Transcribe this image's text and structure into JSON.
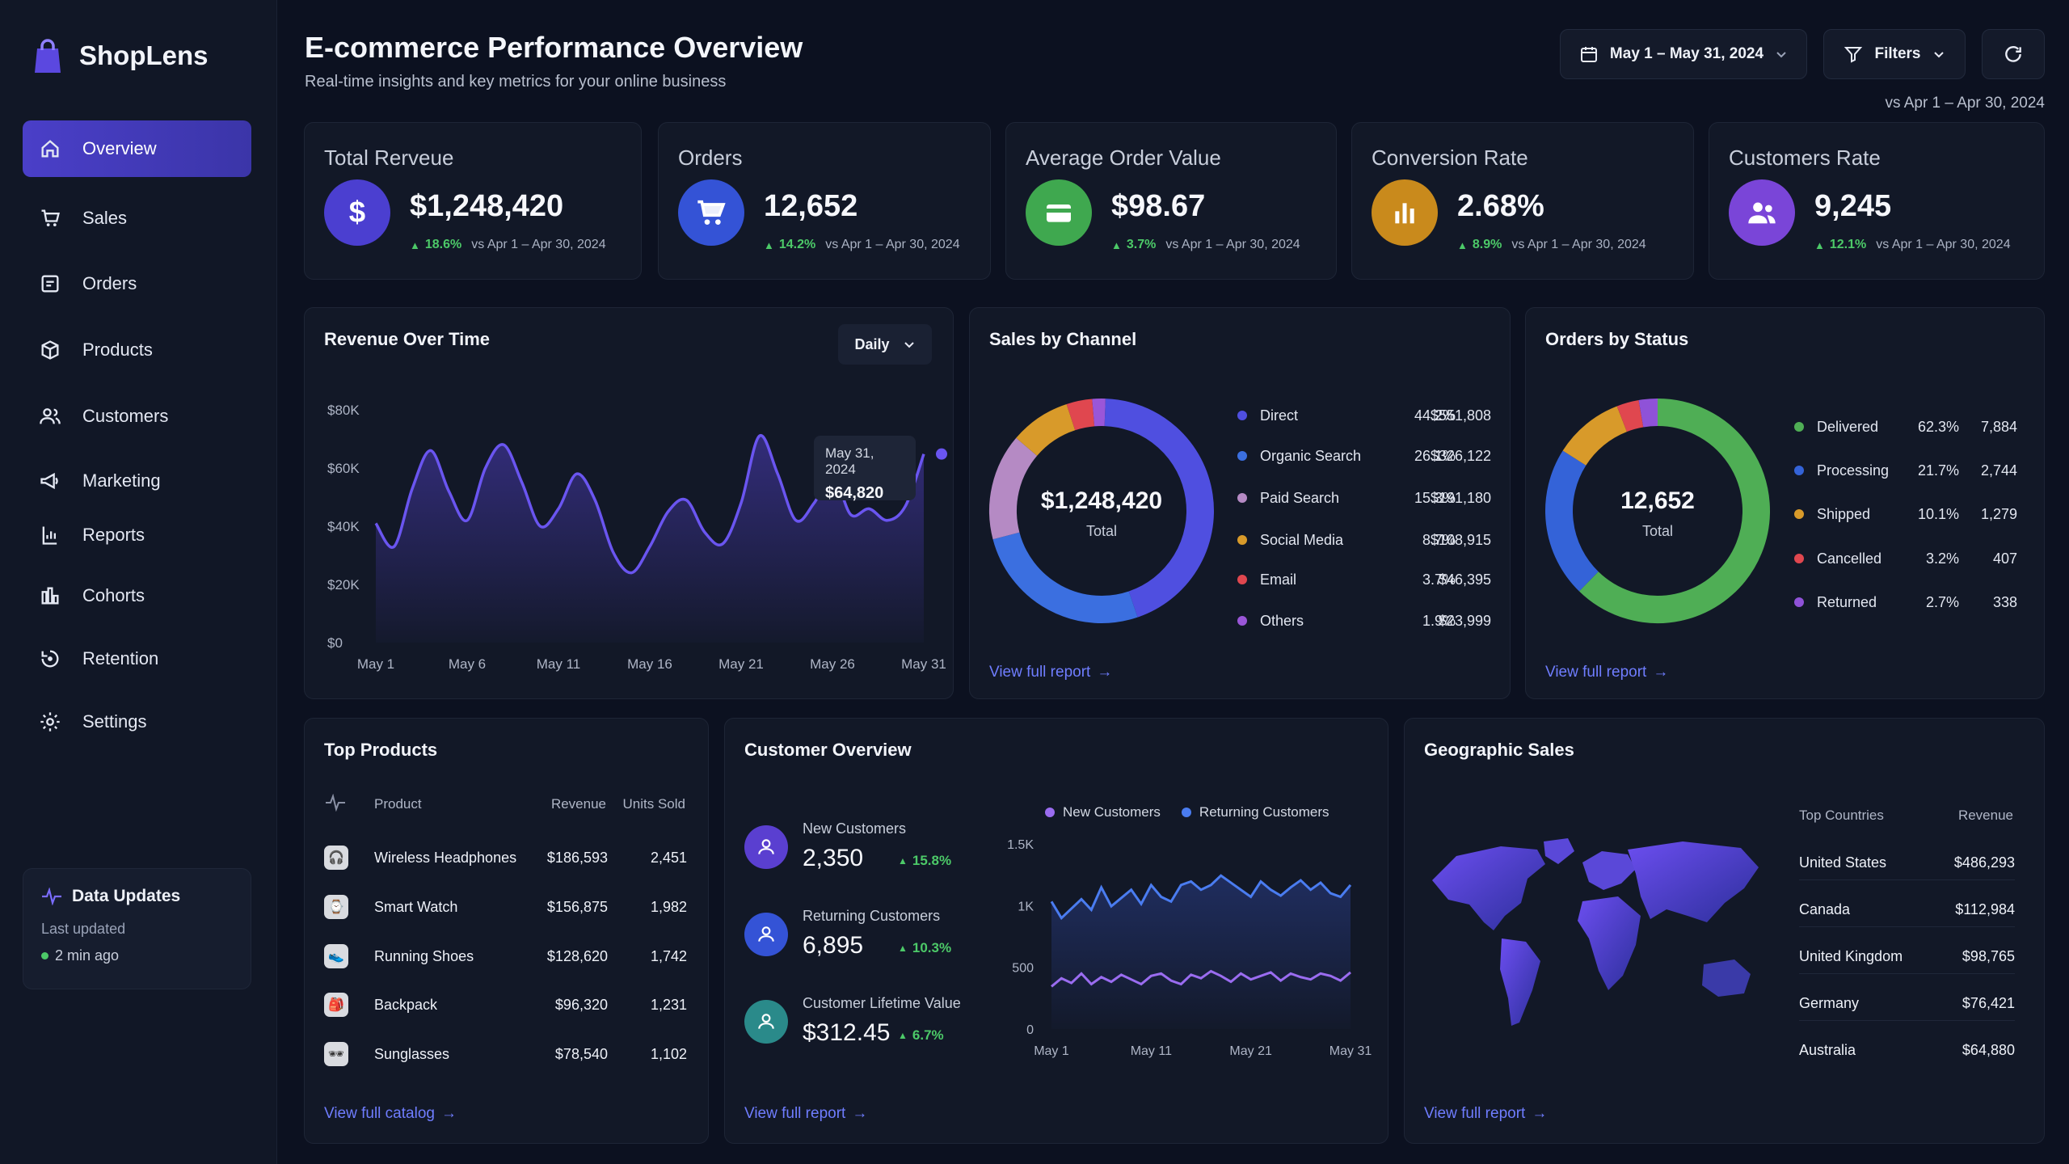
{
  "app": {
    "name": "ShopLens"
  },
  "sidebar": {
    "items": [
      {
        "label": "Overview",
        "icon": "home-icon"
      },
      {
        "label": "Sales",
        "icon": "cart-icon"
      },
      {
        "label": "Orders",
        "icon": "orders-icon"
      },
      {
        "label": "Products",
        "icon": "box-icon"
      },
      {
        "label": "Customers",
        "icon": "users-icon"
      },
      {
        "label": "Marketing",
        "icon": "megaphone-icon"
      },
      {
        "label": "Reports",
        "icon": "report-icon"
      },
      {
        "label": "Cohorts",
        "icon": "cohorts-icon"
      },
      {
        "label": "Retention",
        "icon": "retention-icon"
      },
      {
        "label": "Settings",
        "icon": "gear-icon"
      }
    ],
    "data_updates": {
      "title": "Data Updates",
      "subtitle": "Last updated",
      "time": "2 min ago"
    }
  },
  "header": {
    "title": "E-commerce Performance Overview",
    "subtitle": "Real-time insights and key metrics for your online business",
    "date_range": "May 1 – May 31, 2024",
    "filters_label": "Filters",
    "compare_label": "vs Apr 1 – Apr 30, 2024"
  },
  "kpis": [
    {
      "title": "Total Rerveue",
      "value": "$1,248,420",
      "change": "18.6%",
      "vs": "vs Apr 1 – Apr 30, 2024",
      "color": "#4b3fd0",
      "icon": "dollar-icon"
    },
    {
      "title": "Orders",
      "value": "12,652",
      "change": "14.2%",
      "vs": "vs Apr 1 – Apr 30, 2024",
      "color": "#3453d6",
      "icon": "cart-icon"
    },
    {
      "title": "Average Order Value",
      "value": "$98.67",
      "change": "3.7%",
      "vs": "vs Apr 1 – Apr 30, 2024",
      "color": "#3fa84f",
      "icon": "card-icon"
    },
    {
      "title": "Conversion Rate",
      "value": "2.68%",
      "change": "8.9%",
      "vs": "vs Apr 1 – Apr 30, 2024",
      "color": "#c98a1c",
      "icon": "bar-chart-icon"
    },
    {
      "title": "Customers Rate",
      "value": "9,245",
      "change": "12.1%",
      "vs": "vs Apr 1 – Apr 30, 2024",
      "color": "#7a45d8",
      "icon": "users-icon"
    }
  ],
  "revenue": {
    "title": "Revenue Over Time",
    "granularity": "Daily",
    "tooltip": {
      "date": "May 31, 2024",
      "value": "$64,820"
    }
  },
  "channel": {
    "title": "Sales by Channel",
    "center_value": "$1,248,420",
    "center_label": "Total",
    "link": "View full report",
    "rows": [
      {
        "name": "Direct",
        "pct": "44.2%",
        "value": "$551,808",
        "color": "#4f4fe0"
      },
      {
        "name": "Organic Search",
        "pct": "26.1%",
        "value": "$326,122",
        "color": "#3b6fe0"
      },
      {
        "name": "Paid Search",
        "pct": "15.3%",
        "value": "$191,180",
        "color": "#b58ac4"
      },
      {
        "name": "Social Media",
        "pct": "8.7%",
        "value": "$108,915",
        "color": "#d89a2a"
      },
      {
        "name": "Email",
        "pct": "3.7%",
        "value": "$46,395",
        "color": "#e0474f"
      },
      {
        "name": "Others",
        "pct": "1.9%",
        "value": "$23,999",
        "color": "#9a56d8"
      }
    ]
  },
  "status": {
    "title": "Orders by Status",
    "center_value": "12,652",
    "center_label": "Total",
    "link": "View full report",
    "rows": [
      {
        "name": "Delivered",
        "pct": "62.3%",
        "value": "7,884",
        "color": "#4fae55"
      },
      {
        "name": "Processing",
        "pct": "21.7%",
        "value": "2,744",
        "color": "#3463d8"
      },
      {
        "name": "Shipped",
        "pct": "10.1%",
        "value": "1,279",
        "color": "#d89a2a"
      },
      {
        "name": "Cancelled",
        "pct": "3.2%",
        "value": "407",
        "color": "#e0474f"
      },
      {
        "name": "Returned",
        "pct": "2.7%",
        "value": "338",
        "color": "#8f52d8"
      }
    ]
  },
  "top_products": {
    "title": "Top Products",
    "headers": {
      "product": "Product",
      "revenue": "Revenue",
      "units": "Units Sold"
    },
    "rows": [
      {
        "name": "Wireless Headphones",
        "revenue": "$186,593",
        "units": "2,451",
        "icon": "headphones-icon"
      },
      {
        "name": "Smart Watch",
        "revenue": "$156,875",
        "units": "1,982",
        "icon": "watch-icon"
      },
      {
        "name": "Running Shoes",
        "revenue": "$128,620",
        "units": "1,742",
        "icon": "shoe-icon"
      },
      {
        "name": "Backpack",
        "revenue": "$96,320",
        "units": "1,231",
        "icon": "backpack-icon"
      },
      {
        "name": "Sunglasses",
        "revenue": "$78,540",
        "units": "1,102",
        "icon": "sunglasses-icon"
      }
    ],
    "link": "View full catalog"
  },
  "customers": {
    "title": "Customer Overview",
    "stats": [
      {
        "label": "New Customers",
        "value": "2,350",
        "change": "15.8%",
        "color": "#5a3fd0"
      },
      {
        "label": "Returning Customers",
        "value": "6,895",
        "change": "10.3%",
        "color": "#3453d6"
      },
      {
        "label": "Customer Lifetime Value",
        "value": "$312.45",
        "change": "6.7%",
        "color": "#2a8a8a"
      }
    ],
    "legend": {
      "new": "New Customers",
      "returning": "Returning Customers"
    },
    "link": "View full report"
  },
  "geo": {
    "title": "Geographic Sales",
    "headers": {
      "country": "Top Countries",
      "revenue": "Revenue"
    },
    "rows": [
      {
        "country": "United States",
        "revenue": "$486,293"
      },
      {
        "country": "Canada",
        "revenue": "$112,984"
      },
      {
        "country": "United Kingdom",
        "revenue": "$98,765"
      },
      {
        "country": "Germany",
        "revenue": "$76,421"
      },
      {
        "country": "Australia",
        "revenue": "$64,880"
      }
    ],
    "link": "View full report"
  },
  "chart_data": [
    {
      "type": "area",
      "title": "Revenue Over Time",
      "x_ticks": [
        "May 1",
        "May 6",
        "May 11",
        "May 16",
        "May 21",
        "May 26",
        "May 31"
      ],
      "y_ticks": [
        "$80K",
        "$60K",
        "$40K",
        "$20K",
        "$0"
      ],
      "ylim": [
        0,
        80000
      ],
      "x": [
        1,
        2,
        3,
        4,
        5,
        6,
        7,
        8,
        9,
        10,
        11,
        12,
        13,
        14,
        15,
        16,
        17,
        18,
        19,
        20,
        21,
        22,
        23,
        24,
        25,
        26,
        27,
        28,
        29,
        30,
        31
      ],
      "values": [
        41000,
        33000,
        53000,
        66000,
        52000,
        42000,
        60000,
        68000,
        55000,
        40000,
        46000,
        58000,
        49000,
        31000,
        24000,
        33000,
        45000,
        49000,
        38000,
        34000,
        48000,
        71000,
        58000,
        42000,
        48000,
        58000,
        44000,
        46000,
        42000,
        47000,
        64820
      ],
      "grid": false
    },
    {
      "type": "pie",
      "title": "Sales by Channel",
      "labels": [
        "Direct",
        "Organic Search",
        "Paid Search",
        "Social Media",
        "Email",
        "Others"
      ],
      "values": [
        44.2,
        26.1,
        15.3,
        8.7,
        3.7,
        1.9
      ]
    },
    {
      "type": "pie",
      "title": "Orders by Status",
      "labels": [
        "Delivered",
        "Processing",
        "Shipped",
        "Cancelled",
        "Returned"
      ],
      "values": [
        62.3,
        21.7,
        10.1,
        3.2,
        2.7
      ]
    },
    {
      "type": "line",
      "title": "Customer Overview",
      "x_ticks": [
        "May 1",
        "May 11",
        "May 21",
        "May 31"
      ],
      "y_ticks": [
        "1.5K",
        "1K",
        "500",
        "0"
      ],
      "ylim": [
        0,
        1500
      ],
      "x": [
        1,
        2,
        3,
        4,
        5,
        6,
        7,
        8,
        9,
        10,
        11,
        12,
        13,
        14,
        15,
        16,
        17,
        18,
        19,
        20,
        21,
        22,
        23,
        24,
        25,
        26,
        27,
        28,
        29,
        30,
        31
      ],
      "series": [
        {
          "name": "New Customers",
          "values": [
            360,
            430,
            390,
            470,
            380,
            440,
            400,
            460,
            420,
            380,
            450,
            470,
            410,
            380,
            460,
            430,
            490,
            450,
            400,
            470,
            420,
            450,
            480,
            410,
            470,
            440,
            420,
            470,
            450,
            410,
            480
          ]
        },
        {
          "name": "Returning Customers",
          "values": [
            1080,
            940,
            1020,
            1100,
            1010,
            1200,
            1040,
            1110,
            1180,
            1060,
            1220,
            1120,
            1080,
            1220,
            1250,
            1180,
            1220,
            1300,
            1240,
            1180,
            1120,
            1250,
            1180,
            1130,
            1200,
            1260,
            1180,
            1240,
            1150,
            1120,
            1220
          ]
        }
      ]
    }
  ]
}
